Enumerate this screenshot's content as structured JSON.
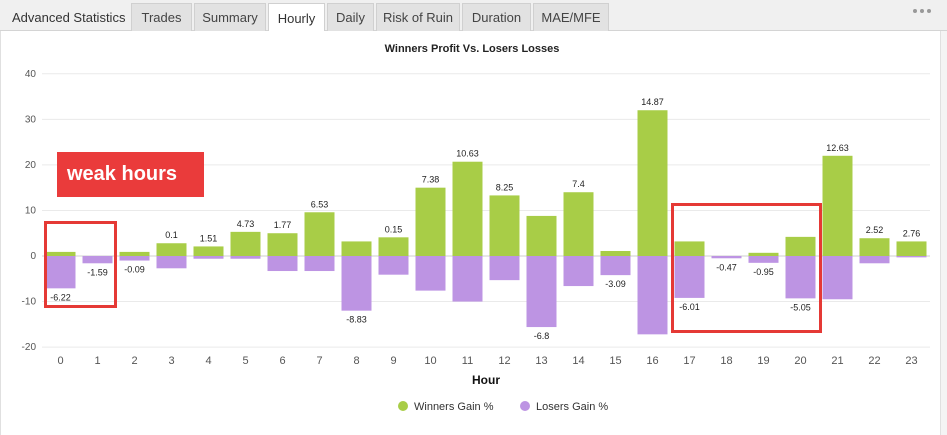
{
  "tabs": [
    {
      "label": "Advanced Statistics",
      "active": false
    },
    {
      "label": "Trades",
      "active": false
    },
    {
      "label": "Summary",
      "active": false
    },
    {
      "label": "Hourly",
      "active": true
    },
    {
      "label": "Daily",
      "active": false
    },
    {
      "label": "Risk of Ruin",
      "active": false
    },
    {
      "label": "Duration",
      "active": false
    },
    {
      "label": "MAE/MFE",
      "active": false
    }
  ],
  "annotation": {
    "label": "weak hours"
  },
  "highlight_ranges": [
    [
      0,
      1
    ],
    [
      17,
      20
    ]
  ],
  "colors": {
    "winners": "#a8cd47",
    "losers": "#bd94e3",
    "highlight": "#e53935"
  },
  "chart_data": {
    "type": "bar",
    "title": "Winners Profit Vs. Losers Losses",
    "xlabel": "Hour",
    "ylabel": "",
    "ylim": [
      -20,
      40
    ],
    "yticks": [
      -20,
      -10,
      0,
      10,
      20,
      30,
      40
    ],
    "grid": true,
    "legend_placement": "bottom",
    "categories": [
      "0",
      "1",
      "2",
      "3",
      "4",
      "5",
      "6",
      "7",
      "8",
      "9",
      "10",
      "11",
      "12",
      "13",
      "14",
      "15",
      "16",
      "17",
      "18",
      "19",
      "20",
      "21",
      "22",
      "23"
    ],
    "series": [
      {
        "name": "Winners Gain %",
        "values": [
          0.9,
          0,
          0.9,
          2.8,
          2.1,
          5.3,
          5.0,
          9.6,
          3.2,
          4.1,
          15.0,
          20.7,
          13.3,
          8.8,
          14.0,
          1.1,
          32.0,
          3.2,
          0,
          0.7,
          4.2,
          22.0,
          3.9,
          3.2
        ]
      },
      {
        "name": "Losers Gain %",
        "values": [
          -7.1,
          -1.6,
          -1.0,
          -2.7,
          -0.6,
          -0.6,
          -3.3,
          -3.3,
          -12.0,
          -4.1,
          -7.6,
          -10.0,
          -5.3,
          -15.6,
          -6.6,
          -4.2,
          -17.2,
          -9.2,
          -0.5,
          -1.5,
          -9.3,
          -9.5,
          -1.6,
          -0.3
        ]
      }
    ],
    "data_labels": [
      "-6.22",
      "-1.59",
      "-0.09",
      "0.1",
      "1.51",
      "4.73",
      "1.77",
      "6.53",
      "-8.83",
      "0.15",
      "7.38",
      "10.63",
      "8.25",
      "-6.8",
      "7.4",
      "-3.09",
      "14.87",
      "-6.01",
      "-0.47",
      "-0.95",
      "-5.05",
      "12.63",
      "2.52",
      "2.76"
    ]
  }
}
